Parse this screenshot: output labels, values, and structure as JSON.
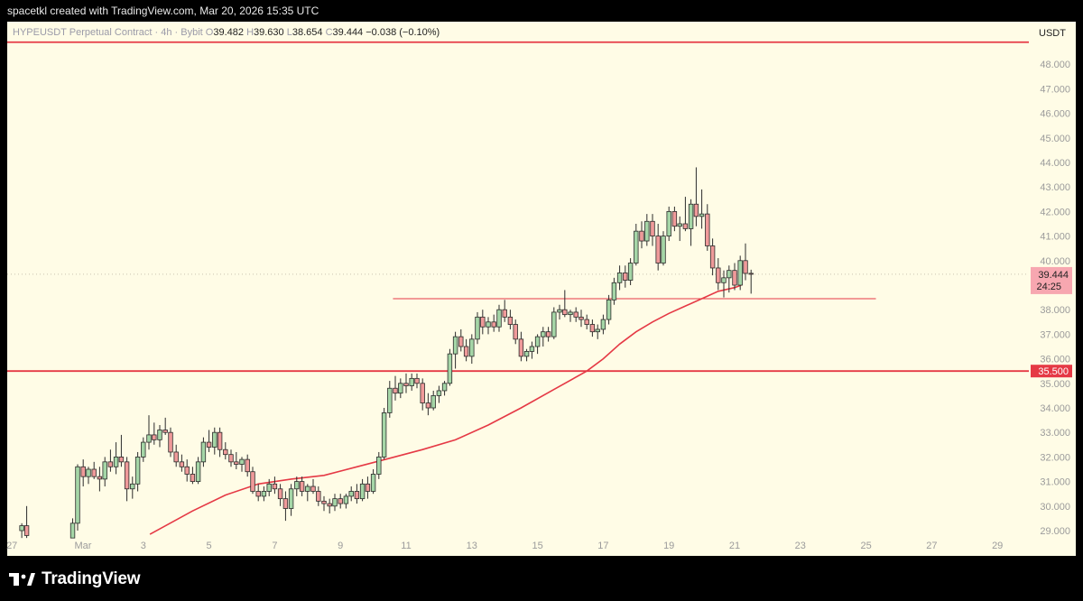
{
  "header": {
    "caption": "spacetkl created with TradingView.com, Mar 20, 2026 15:35 UTC"
  },
  "legend": {
    "symbol": "HYPEUSDT Perpetual Contract · 4h · Bybit",
    "o_label": "O",
    "o": "39.482",
    "h_label": "H",
    "h": "39.630",
    "l_label": "L",
    "l": "38.654",
    "c_label": "C",
    "c": "39.444",
    "change": "−0.038 (−0.10%)"
  },
  "footer": {
    "brand": "TradingView"
  },
  "colors": {
    "background": "#fffce6",
    "up": "#a5d6a7",
    "down": "#ef9a9a",
    "wick": "#2b2b2b",
    "ma": "#e53945",
    "level": "#e53945"
  },
  "chart_data": {
    "type": "candlestick",
    "symbol": "HYPEUSDT",
    "timeframe": "4h",
    "currency_label": "USDT",
    "y_axis": {
      "ticks": [
        29,
        30,
        31,
        32,
        33,
        34,
        35,
        36,
        37,
        38,
        40,
        41,
        42,
        43,
        44,
        45,
        46,
        47,
        48
      ],
      "range": [
        28.7,
        49.0
      ]
    },
    "x_axis": {
      "ticks": [
        "27",
        "Mar",
        "3",
        "5",
        "7",
        "9",
        "11",
        "13",
        "15",
        "17",
        "19",
        "21",
        "23",
        "25",
        "27",
        "29"
      ],
      "tick_days": [
        -2,
        0,
        2,
        4,
        6,
        8,
        10,
        12,
        14,
        16,
        18,
        20,
        22,
        24,
        26,
        28
      ],
      "range_days": [
        -2.15,
        29.3
      ]
    },
    "last_price": {
      "value": 39.444,
      "label": "39.444",
      "countdown": "24:25"
    },
    "levels": [
      {
        "value": 48.9,
        "from_day": -2.15,
        "to_day": 29.3,
        "style": "thick"
      },
      {
        "value": 35.5,
        "label": "35.500",
        "from_day": -2.15,
        "to_day": 29.3,
        "style": "thick"
      },
      {
        "value": 38.45,
        "from_day": 9.6,
        "to_day": 24.3,
        "style": "thin"
      }
    ],
    "moving_average": {
      "x": [
        2.2,
        3.5,
        4.5,
        5.5,
        6.5,
        7.5,
        8.5,
        9.5,
        10.5,
        11.5,
        12.5,
        13.5,
        14.5,
        15.5,
        16.0,
        16.5,
        17.0,
        17.5,
        18.0,
        18.5,
        19.0,
        19.5,
        20.0,
        20.2
      ],
      "y": [
        28.85,
        29.8,
        30.45,
        30.9,
        31.1,
        31.25,
        31.6,
        31.95,
        32.3,
        32.7,
        33.3,
        34.0,
        34.75,
        35.5,
        36.0,
        36.6,
        37.1,
        37.5,
        37.85,
        38.15,
        38.45,
        38.75,
        38.9,
        39.0
      ]
    },
    "candles": [
      {
        "t": -1.7,
        "o": 29.0,
        "h": 29.3,
        "l": 28.7,
        "c": 29.2
      },
      {
        "t": -1.55,
        "o": 29.2,
        "h": 30.0,
        "l": 28.7,
        "c": 28.8
      },
      {
        "t": -0.15,
        "o": 28.7,
        "h": 29.5,
        "l": 28.7,
        "c": 29.3
      },
      {
        "t": 0.0,
        "o": 29.3,
        "h": 31.7,
        "l": 29.0,
        "c": 31.6
      },
      {
        "t": 0.17,
        "o": 31.6,
        "h": 31.9,
        "l": 30.8,
        "c": 31.2
      },
      {
        "t": 0.33,
        "o": 31.2,
        "h": 31.6,
        "l": 30.9,
        "c": 31.5
      },
      {
        "t": 0.5,
        "o": 31.5,
        "h": 31.8,
        "l": 31.1,
        "c": 31.2
      },
      {
        "t": 0.67,
        "o": 31.2,
        "h": 31.6,
        "l": 30.6,
        "c": 31.1
      },
      {
        "t": 0.83,
        "o": 31.1,
        "h": 32.0,
        "l": 30.8,
        "c": 31.8
      },
      {
        "t": 1.0,
        "o": 31.8,
        "h": 32.3,
        "l": 31.4,
        "c": 31.6
      },
      {
        "t": 1.17,
        "o": 31.6,
        "h": 32.6,
        "l": 31.3,
        "c": 32.0
      },
      {
        "t": 1.33,
        "o": 32.0,
        "h": 32.9,
        "l": 31.6,
        "c": 31.8
      },
      {
        "t": 1.5,
        "o": 31.8,
        "h": 32.0,
        "l": 30.2,
        "c": 30.7
      },
      {
        "t": 1.67,
        "o": 30.7,
        "h": 31.2,
        "l": 30.3,
        "c": 30.9
      },
      {
        "t": 1.83,
        "o": 30.9,
        "h": 32.2,
        "l": 30.6,
        "c": 32.0
      },
      {
        "t": 2.0,
        "o": 32.0,
        "h": 32.8,
        "l": 31.8,
        "c": 32.6
      },
      {
        "t": 2.17,
        "o": 32.6,
        "h": 33.7,
        "l": 32.3,
        "c": 32.9
      },
      {
        "t": 2.33,
        "o": 32.9,
        "h": 33.4,
        "l": 32.5,
        "c": 32.7
      },
      {
        "t": 2.5,
        "o": 32.7,
        "h": 33.3,
        "l": 32.4,
        "c": 33.1
      },
      {
        "t": 2.67,
        "o": 33.1,
        "h": 33.6,
        "l": 32.9,
        "c": 33.0
      },
      {
        "t": 2.83,
        "o": 33.0,
        "h": 33.2,
        "l": 32.0,
        "c": 32.2
      },
      {
        "t": 3.0,
        "o": 32.2,
        "h": 32.5,
        "l": 31.6,
        "c": 31.8
      },
      {
        "t": 3.17,
        "o": 31.8,
        "h": 32.1,
        "l": 31.4,
        "c": 31.6
      },
      {
        "t": 3.33,
        "o": 31.6,
        "h": 31.9,
        "l": 31.0,
        "c": 31.3
      },
      {
        "t": 3.5,
        "o": 31.3,
        "h": 31.6,
        "l": 30.9,
        "c": 31.0
      },
      {
        "t": 3.67,
        "o": 31.0,
        "h": 32.0,
        "l": 30.9,
        "c": 31.8
      },
      {
        "t": 3.83,
        "o": 31.8,
        "h": 32.8,
        "l": 31.6,
        "c": 32.6
      },
      {
        "t": 4.0,
        "o": 32.6,
        "h": 33.1,
        "l": 32.2,
        "c": 32.4
      },
      {
        "t": 4.17,
        "o": 32.4,
        "h": 33.2,
        "l": 32.1,
        "c": 33.0
      },
      {
        "t": 4.33,
        "o": 33.0,
        "h": 33.2,
        "l": 32.0,
        "c": 32.3
      },
      {
        "t": 4.5,
        "o": 32.3,
        "h": 32.6,
        "l": 31.9,
        "c": 32.1
      },
      {
        "t": 4.67,
        "o": 32.1,
        "h": 32.3,
        "l": 31.6,
        "c": 31.8
      },
      {
        "t": 4.83,
        "o": 31.8,
        "h": 32.2,
        "l": 31.5,
        "c": 31.7
      },
      {
        "t": 5.0,
        "o": 31.7,
        "h": 32.0,
        "l": 31.4,
        "c": 31.9
      },
      {
        "t": 5.17,
        "o": 31.9,
        "h": 32.1,
        "l": 31.2,
        "c": 31.4
      },
      {
        "t": 5.33,
        "o": 31.4,
        "h": 31.6,
        "l": 30.5,
        "c": 30.6
      },
      {
        "t": 5.5,
        "o": 30.6,
        "h": 30.9,
        "l": 30.2,
        "c": 30.4
      },
      {
        "t": 5.67,
        "o": 30.4,
        "h": 30.8,
        "l": 30.2,
        "c": 30.6
      },
      {
        "t": 5.83,
        "o": 30.6,
        "h": 31.1,
        "l": 30.4,
        "c": 30.9
      },
      {
        "t": 6.0,
        "o": 30.9,
        "h": 31.2,
        "l": 30.5,
        "c": 30.7
      },
      {
        "t": 6.17,
        "o": 30.7,
        "h": 30.9,
        "l": 30.0,
        "c": 30.3
      },
      {
        "t": 6.33,
        "o": 30.3,
        "h": 30.6,
        "l": 29.4,
        "c": 29.9
      },
      {
        "t": 6.5,
        "o": 29.9,
        "h": 30.9,
        "l": 29.6,
        "c": 30.7
      },
      {
        "t": 6.67,
        "o": 30.7,
        "h": 31.2,
        "l": 30.4,
        "c": 31.0
      },
      {
        "t": 6.83,
        "o": 31.0,
        "h": 31.2,
        "l": 30.4,
        "c": 30.6
      },
      {
        "t": 7.0,
        "o": 30.6,
        "h": 30.9,
        "l": 30.2,
        "c": 30.8
      },
      {
        "t": 7.17,
        "o": 30.8,
        "h": 31.1,
        "l": 30.5,
        "c": 30.6
      },
      {
        "t": 7.33,
        "o": 30.6,
        "h": 30.8,
        "l": 30.0,
        "c": 30.2
      },
      {
        "t": 7.5,
        "o": 30.2,
        "h": 30.4,
        "l": 29.8,
        "c": 30.1
      },
      {
        "t": 7.67,
        "o": 30.1,
        "h": 30.3,
        "l": 29.7,
        "c": 30.0
      },
      {
        "t": 7.83,
        "o": 30.0,
        "h": 30.5,
        "l": 29.8,
        "c": 30.3
      },
      {
        "t": 8.0,
        "o": 30.3,
        "h": 30.5,
        "l": 29.9,
        "c": 30.1
      },
      {
        "t": 8.17,
        "o": 30.1,
        "h": 30.5,
        "l": 29.9,
        "c": 30.4
      },
      {
        "t": 8.33,
        "o": 30.4,
        "h": 30.8,
        "l": 30.2,
        "c": 30.6
      },
      {
        "t": 8.5,
        "o": 30.6,
        "h": 30.9,
        "l": 30.1,
        "c": 30.3
      },
      {
        "t": 8.67,
        "o": 30.3,
        "h": 31.1,
        "l": 30.2,
        "c": 30.9
      },
      {
        "t": 8.83,
        "o": 30.9,
        "h": 31.2,
        "l": 30.3,
        "c": 30.6
      },
      {
        "t": 9.0,
        "o": 30.6,
        "h": 31.5,
        "l": 30.5,
        "c": 31.3
      },
      {
        "t": 9.17,
        "o": 31.3,
        "h": 32.2,
        "l": 31.1,
        "c": 32.0
      },
      {
        "t": 9.33,
        "o": 32.0,
        "h": 34.0,
        "l": 31.9,
        "c": 33.8
      },
      {
        "t": 9.5,
        "o": 33.8,
        "h": 35.1,
        "l": 33.6,
        "c": 34.8
      },
      {
        "t": 9.67,
        "o": 34.8,
        "h": 35.3,
        "l": 34.3,
        "c": 34.6
      },
      {
        "t": 9.83,
        "o": 34.6,
        "h": 35.2,
        "l": 34.4,
        "c": 35.0
      },
      {
        "t": 10.0,
        "o": 35.0,
        "h": 35.4,
        "l": 34.6,
        "c": 34.9
      },
      {
        "t": 10.17,
        "o": 34.9,
        "h": 35.4,
        "l": 34.7,
        "c": 35.2
      },
      {
        "t": 10.33,
        "o": 35.2,
        "h": 35.4,
        "l": 34.8,
        "c": 35.0
      },
      {
        "t": 10.5,
        "o": 35.0,
        "h": 35.2,
        "l": 33.9,
        "c": 34.2
      },
      {
        "t": 10.67,
        "o": 34.2,
        "h": 34.6,
        "l": 33.7,
        "c": 34.0
      },
      {
        "t": 10.83,
        "o": 34.0,
        "h": 34.7,
        "l": 33.9,
        "c": 34.5
      },
      {
        "t": 11.0,
        "o": 34.5,
        "h": 34.9,
        "l": 34.2,
        "c": 34.7
      },
      {
        "t": 11.17,
        "o": 34.7,
        "h": 35.1,
        "l": 34.5,
        "c": 35.0
      },
      {
        "t": 11.33,
        "o": 35.0,
        "h": 36.4,
        "l": 34.9,
        "c": 36.2
      },
      {
        "t": 11.5,
        "o": 36.2,
        "h": 37.1,
        "l": 35.6,
        "c": 36.9
      },
      {
        "t": 11.67,
        "o": 36.9,
        "h": 37.2,
        "l": 36.3,
        "c": 36.5
      },
      {
        "t": 11.83,
        "o": 36.5,
        "h": 36.8,
        "l": 35.9,
        "c": 36.1
      },
      {
        "t": 12.0,
        "o": 36.1,
        "h": 37.0,
        "l": 35.8,
        "c": 36.8
      },
      {
        "t": 12.17,
        "o": 36.8,
        "h": 37.9,
        "l": 36.6,
        "c": 37.7
      },
      {
        "t": 12.33,
        "o": 37.7,
        "h": 38.0,
        "l": 37.0,
        "c": 37.3
      },
      {
        "t": 12.5,
        "o": 37.3,
        "h": 37.7,
        "l": 37.0,
        "c": 37.5
      },
      {
        "t": 12.67,
        "o": 37.5,
        "h": 37.8,
        "l": 37.1,
        "c": 37.3
      },
      {
        "t": 12.83,
        "o": 37.3,
        "h": 38.2,
        "l": 37.1,
        "c": 38.0
      },
      {
        "t": 13.0,
        "o": 38.0,
        "h": 38.4,
        "l": 37.5,
        "c": 37.7
      },
      {
        "t": 13.17,
        "o": 37.7,
        "h": 38.0,
        "l": 37.2,
        "c": 37.4
      },
      {
        "t": 13.33,
        "o": 37.4,
        "h": 37.6,
        "l": 36.6,
        "c": 36.8
      },
      {
        "t": 13.5,
        "o": 36.8,
        "h": 37.1,
        "l": 35.9,
        "c": 36.1
      },
      {
        "t": 13.67,
        "o": 36.1,
        "h": 36.4,
        "l": 35.9,
        "c": 36.3
      },
      {
        "t": 13.83,
        "o": 36.3,
        "h": 36.7,
        "l": 36.0,
        "c": 36.5
      },
      {
        "t": 14.0,
        "o": 36.5,
        "h": 37.0,
        "l": 36.2,
        "c": 36.9
      },
      {
        "t": 14.17,
        "o": 36.9,
        "h": 37.3,
        "l": 36.5,
        "c": 37.1
      },
      {
        "t": 14.33,
        "o": 37.1,
        "h": 37.3,
        "l": 36.7,
        "c": 36.9
      },
      {
        "t": 14.5,
        "o": 36.9,
        "h": 38.1,
        "l": 36.8,
        "c": 37.9
      },
      {
        "t": 14.67,
        "o": 37.9,
        "h": 38.2,
        "l": 37.6,
        "c": 38.0
      },
      {
        "t": 14.83,
        "o": 38.0,
        "h": 38.8,
        "l": 37.7,
        "c": 37.8
      },
      {
        "t": 15.0,
        "o": 37.8,
        "h": 38.0,
        "l": 37.5,
        "c": 37.9
      },
      {
        "t": 15.17,
        "o": 37.9,
        "h": 38.1,
        "l": 37.5,
        "c": 37.7
      },
      {
        "t": 15.33,
        "o": 37.7,
        "h": 38.0,
        "l": 37.3,
        "c": 37.6
      },
      {
        "t": 15.5,
        "o": 37.6,
        "h": 37.8,
        "l": 37.2,
        "c": 37.4
      },
      {
        "t": 15.67,
        "o": 37.4,
        "h": 37.6,
        "l": 36.9,
        "c": 37.1
      },
      {
        "t": 15.83,
        "o": 37.1,
        "h": 37.4,
        "l": 36.8,
        "c": 37.2
      },
      {
        "t": 16.0,
        "o": 37.2,
        "h": 37.8,
        "l": 37.0,
        "c": 37.6
      },
      {
        "t": 16.17,
        "o": 37.6,
        "h": 38.6,
        "l": 37.4,
        "c": 38.4
      },
      {
        "t": 16.33,
        "o": 38.4,
        "h": 39.3,
        "l": 38.2,
        "c": 39.1
      },
      {
        "t": 16.5,
        "o": 39.1,
        "h": 39.8,
        "l": 38.8,
        "c": 39.5
      },
      {
        "t": 16.67,
        "o": 39.5,
        "h": 39.8,
        "l": 38.9,
        "c": 39.2
      },
      {
        "t": 16.83,
        "o": 39.2,
        "h": 40.1,
        "l": 39.0,
        "c": 39.9
      },
      {
        "t": 17.0,
        "o": 39.9,
        "h": 41.5,
        "l": 39.8,
        "c": 41.2
      },
      {
        "t": 17.17,
        "o": 41.2,
        "h": 41.6,
        "l": 40.5,
        "c": 40.8
      },
      {
        "t": 17.33,
        "o": 40.8,
        "h": 41.9,
        "l": 40.6,
        "c": 41.6
      },
      {
        "t": 17.5,
        "o": 41.6,
        "h": 41.9,
        "l": 40.6,
        "c": 41.0
      },
      {
        "t": 17.67,
        "o": 41.0,
        "h": 41.5,
        "l": 39.6,
        "c": 39.9
      },
      {
        "t": 17.83,
        "o": 39.9,
        "h": 41.2,
        "l": 39.8,
        "c": 41.0
      },
      {
        "t": 18.0,
        "o": 41.0,
        "h": 42.2,
        "l": 40.8,
        "c": 42.0
      },
      {
        "t": 18.17,
        "o": 42.0,
        "h": 42.2,
        "l": 41.2,
        "c": 41.4
      },
      {
        "t": 18.33,
        "o": 41.4,
        "h": 41.8,
        "l": 40.8,
        "c": 41.5
      },
      {
        "t": 18.5,
        "o": 41.5,
        "h": 42.6,
        "l": 41.2,
        "c": 41.3
      },
      {
        "t": 18.67,
        "o": 41.3,
        "h": 42.5,
        "l": 40.6,
        "c": 42.3
      },
      {
        "t": 18.83,
        "o": 42.3,
        "h": 43.8,
        "l": 41.4,
        "c": 41.8
      },
      {
        "t": 19.0,
        "o": 41.8,
        "h": 42.9,
        "l": 41.3,
        "c": 41.9
      },
      {
        "t": 19.17,
        "o": 41.9,
        "h": 42.3,
        "l": 40.4,
        "c": 40.6
      },
      {
        "t": 19.33,
        "o": 40.6,
        "h": 40.9,
        "l": 39.4,
        "c": 39.7
      },
      {
        "t": 19.5,
        "o": 39.7,
        "h": 40.1,
        "l": 38.8,
        "c": 39.1
      },
      {
        "t": 19.67,
        "o": 39.1,
        "h": 39.6,
        "l": 38.5,
        "c": 39.3
      },
      {
        "t": 19.83,
        "o": 39.3,
        "h": 39.8,
        "l": 38.7,
        "c": 39.6
      },
      {
        "t": 20.0,
        "o": 39.6,
        "h": 39.9,
        "l": 38.8,
        "c": 39.0
      },
      {
        "t": 20.17,
        "o": 39.0,
        "h": 40.2,
        "l": 38.8,
        "c": 40.0
      },
      {
        "t": 20.33,
        "o": 40.0,
        "h": 40.7,
        "l": 39.2,
        "c": 39.48
      },
      {
        "t": 20.5,
        "o": 39.482,
        "h": 39.63,
        "l": 38.654,
        "c": 39.444
      }
    ]
  }
}
